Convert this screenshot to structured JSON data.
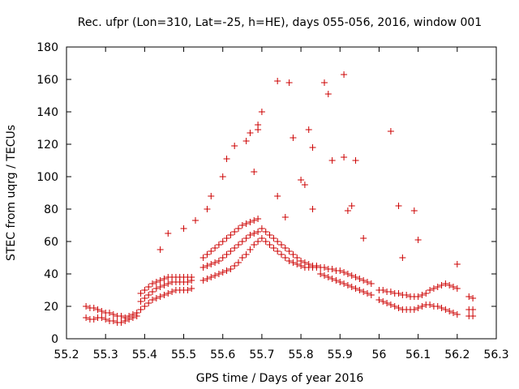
{
  "chart_data": {
    "type": "scatter",
    "title": "Rec. ufpr (Lon=310, Lat=-25, h=HE), days 055-056, 2016, window 001",
    "xlabel": "GPS time / Days of year 2016",
    "ylabel": "STEC from uqrg / TECUs",
    "xlim": [
      55.2,
      56.3
    ],
    "ylim": [
      0,
      180
    ],
    "xticks": [
      "55.2",
      "55.3",
      "55.4",
      "55.5",
      "55.6",
      "55.7",
      "55.8",
      "55.9",
      "56",
      "56.1",
      "56.2",
      "56.3"
    ],
    "yticks": [
      "0",
      "20",
      "40",
      "60",
      "80",
      "100",
      "120",
      "140",
      "160",
      "180"
    ],
    "grid": false,
    "marker": "plus",
    "color": "#cc0000",
    "series": [
      {
        "x": [
          55.25,
          55.26,
          55.27,
          55.28,
          55.29,
          55.3,
          55.31,
          55.32,
          55.33,
          55.34,
          55.35,
          55.36,
          55.37,
          55.38,
          55.25,
          55.26,
          55.27,
          55.28,
          55.29,
          55.3,
          55.31,
          55.32,
          55.33,
          55.34,
          55.35,
          55.36,
          55.37,
          55.38,
          55.39,
          55.4,
          55.41,
          55.42,
          55.43,
          55.44,
          55.45,
          55.46,
          55.47,
          55.48,
          55.49,
          55.5,
          55.51,
          55.52,
          55.39,
          55.4,
          55.41,
          55.42,
          55.43,
          55.44,
          55.45,
          55.46,
          55.47,
          55.48,
          55.49,
          55.5,
          55.51,
          55.52,
          55.39,
          55.4,
          55.41,
          55.42,
          55.43,
          55.44,
          55.45,
          55.46,
          55.47,
          55.48,
          55.49,
          55.5,
          55.51,
          55.52,
          55.55,
          55.56,
          55.57,
          55.58,
          55.59,
          55.6,
          55.61,
          55.62,
          55.63,
          55.64,
          55.65,
          55.66,
          55.67,
          55.68,
          55.69,
          55.55,
          55.56,
          55.57,
          55.58,
          55.59,
          55.6,
          55.61,
          55.62,
          55.63,
          55.64,
          55.65,
          55.66,
          55.67,
          55.68,
          55.69,
          55.55,
          55.56,
          55.57,
          55.58,
          55.59,
          55.6,
          55.61,
          55.62,
          55.63,
          55.64,
          55.65,
          55.66,
          55.67,
          55.68,
          55.69,
          55.7,
          55.71,
          55.72,
          55.73,
          55.74,
          55.75,
          55.76,
          55.77,
          55.78,
          55.79,
          55.8,
          55.81,
          55.82,
          55.83,
          55.84,
          55.7,
          55.71,
          55.72,
          55.73,
          55.74,
          55.75,
          55.76,
          55.77,
          55.78,
          55.79,
          55.8,
          55.81,
          55.82,
          55.83,
          55.84,
          55.85,
          55.86,
          55.87,
          55.88,
          55.89,
          55.9,
          55.91,
          55.92,
          55.93,
          55.94,
          55.95,
          55.96,
          55.97,
          55.98,
          55.85,
          55.86,
          55.87,
          55.88,
          55.89,
          55.9,
          55.91,
          55.92,
          55.93,
          55.94,
          55.95,
          55.96,
          55.97,
          55.98,
          56.0,
          56.01,
          56.02,
          56.03,
          56.04,
          56.05,
          56.06,
          56.07,
          56.08,
          56.09,
          56.1,
          56.11,
          56.12,
          56.13,
          56.14,
          56.15,
          56.16,
          56.17,
          56.18,
          56.19,
          56.2,
          56.0,
          56.01,
          56.02,
          56.03,
          56.04,
          56.05,
          56.06,
          56.07,
          56.08,
          56.09,
          56.1,
          56.11,
          56.12,
          56.13,
          56.14,
          56.15,
          56.16,
          56.17,
          56.18,
          56.19,
          56.2,
          56.23,
          56.24,
          56.23,
          56.24,
          56.23,
          56.24,
          55.74,
          55.77,
          55.78,
          55.86,
          55.87,
          55.91,
          55.7,
          55.69,
          55.66,
          55.63,
          55.61,
          55.6,
          55.57,
          55.56,
          55.82,
          55.83,
          55.88,
          55.91,
          55.93,
          55.94,
          56.03,
          56.05,
          56.09,
          56.1,
          56.2,
          55.69,
          55.67,
          55.68,
          55.74,
          55.76,
          55.8,
          55.81,
          55.83,
          55.92,
          55.96,
          56.06,
          55.46,
          55.44,
          55.5,
          55.53
        ],
        "y": [
          13,
          12,
          12,
          13,
          13,
          12,
          11,
          11,
          10,
          10,
          11,
          12,
          13,
          14,
          20,
          19,
          19,
          18,
          17,
          16,
          16,
          15,
          14,
          14,
          13,
          14,
          15,
          16,
          18,
          20,
          22,
          24,
          25,
          26,
          27,
          28,
          29,
          30,
          30,
          30,
          30,
          31,
          23,
          25,
          27,
          29,
          31,
          32,
          33,
          34,
          35,
          35,
          35,
          35,
          35,
          36,
          28,
          30,
          32,
          34,
          35,
          36,
          37,
          38,
          38,
          38,
          38,
          38,
          38,
          38,
          36,
          37,
          38,
          39,
          40,
          41,
          42,
          43,
          45,
          47,
          50,
          52,
          55,
          58,
          60,
          44,
          45,
          46,
          47,
          48,
          50,
          52,
          54,
          56,
          58,
          60,
          62,
          64,
          65,
          66,
          50,
          52,
          54,
          56,
          58,
          60,
          62,
          64,
          66,
          68,
          70,
          71,
          72,
          73,
          74,
          62,
          60,
          58,
          56,
          54,
          52,
          50,
          48,
          47,
          46,
          45,
          44,
          44,
          44,
          44,
          68,
          66,
          64,
          62,
          60,
          58,
          56,
          54,
          52,
          50,
          48,
          47,
          46,
          45,
          45,
          40,
          39,
          38,
          37,
          36,
          35,
          34,
          33,
          32,
          31,
          30,
          29,
          28,
          27,
          44,
          44,
          43,
          43,
          42,
          42,
          41,
          40,
          39,
          38,
          37,
          36,
          35,
          34,
          24,
          23,
          22,
          21,
          20,
          19,
          18,
          18,
          18,
          18,
          19,
          20,
          21,
          21,
          20,
          20,
          19,
          18,
          17,
          16,
          15,
          30,
          30,
          29,
          29,
          28,
          28,
          27,
          27,
          26,
          26,
          26,
          27,
          28,
          30,
          31,
          32,
          33,
          34,
          33,
          32,
          31,
          14,
          14,
          18,
          18,
          26,
          25,
          159,
          158,
          124,
          158,
          151,
          163,
          140,
          132,
          122,
          119,
          111,
          100,
          88,
          80,
          129,
          118,
          110,
          112,
          82,
          110,
          128,
          82,
          79,
          61,
          46,
          129,
          127,
          103,
          88,
          75,
          98,
          95,
          80,
          79,
          62,
          50,
          65,
          55,
          68,
          73
        ]
      }
    ]
  }
}
